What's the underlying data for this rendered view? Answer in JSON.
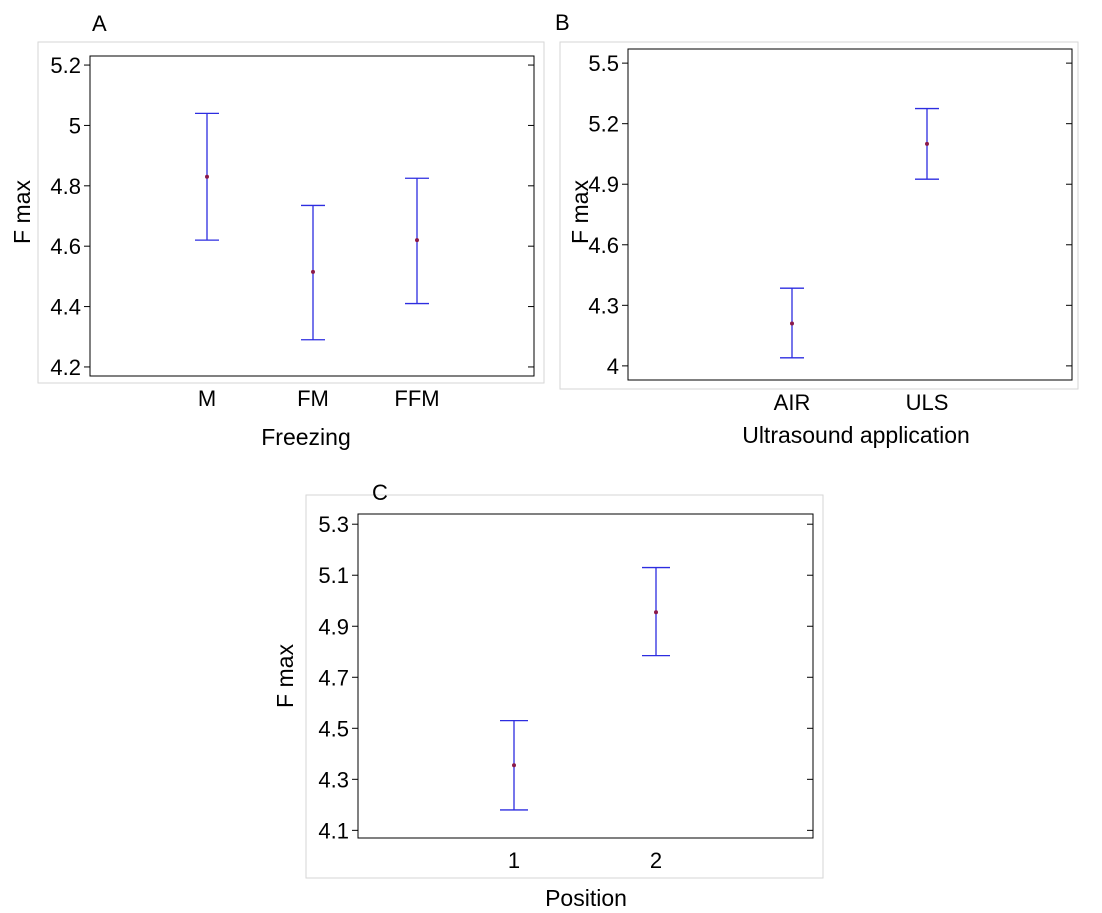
{
  "chart_data": [
    {
      "type": "errorbar",
      "panel_label": "A",
      "xlabel": "Freezing",
      "ylabel": "F max",
      "ylim": [
        4.17,
        5.23
      ],
      "yticks": [
        4.2,
        4.4,
        4.6,
        4.8,
        5.0,
        5.2
      ],
      "ytick_labels": [
        "4.2",
        "4.4",
        "4.6",
        "4.8",
        "5",
        "5.2"
      ],
      "categories": [
        "M",
        "FM",
        "FFM"
      ],
      "points": [
        {
          "category": "M",
          "mean": 4.83,
          "lower": 4.62,
          "upper": 5.04
        },
        {
          "category": "FM",
          "mean": 4.515,
          "lower": 4.29,
          "upper": 4.735
        },
        {
          "category": "FFM",
          "mean": 4.62,
          "lower": 4.41,
          "upper": 4.825
        }
      ],
      "grid": false,
      "colors": {
        "bar": "#2d2de0",
        "marker": "#8b1a4a"
      }
    },
    {
      "type": "errorbar",
      "panel_label": "B",
      "xlabel": "Ultrasound application",
      "ylabel": "F max",
      "ylim": [
        3.93,
        5.57
      ],
      "yticks": [
        4.0,
        4.3,
        4.6,
        4.9,
        5.2,
        5.5
      ],
      "ytick_labels": [
        "4",
        "4.3",
        "4.6",
        "4.9",
        "5.2",
        "5.5"
      ],
      "categories": [
        "AIR",
        "ULS"
      ],
      "points": [
        {
          "category": "AIR",
          "mean": 4.21,
          "lower": 4.04,
          "upper": 4.385
        },
        {
          "category": "ULS",
          "mean": 5.1,
          "lower": 4.925,
          "upper": 5.275
        }
      ],
      "grid": false,
      "colors": {
        "bar": "#2d2de0",
        "marker": "#8b1a4a"
      }
    },
    {
      "type": "errorbar",
      "panel_label": "C",
      "xlabel": "Position",
      "ylabel": "F max",
      "ylim": [
        4.07,
        5.34
      ],
      "yticks": [
        4.1,
        4.3,
        4.5,
        4.7,
        4.9,
        5.1,
        5.3
      ],
      "ytick_labels": [
        "4.1",
        "4.3",
        "4.5",
        "4.7",
        "4.9",
        "5.1",
        "5.3"
      ],
      "categories": [
        "1",
        "2"
      ],
      "points": [
        {
          "category": "1",
          "mean": 4.355,
          "lower": 4.18,
          "upper": 4.53
        },
        {
          "category": "2",
          "mean": 4.955,
          "lower": 4.785,
          "upper": 5.13
        }
      ],
      "grid": false,
      "colors": {
        "bar": "#2d2de0",
        "marker": "#8b1a4a"
      }
    }
  ]
}
